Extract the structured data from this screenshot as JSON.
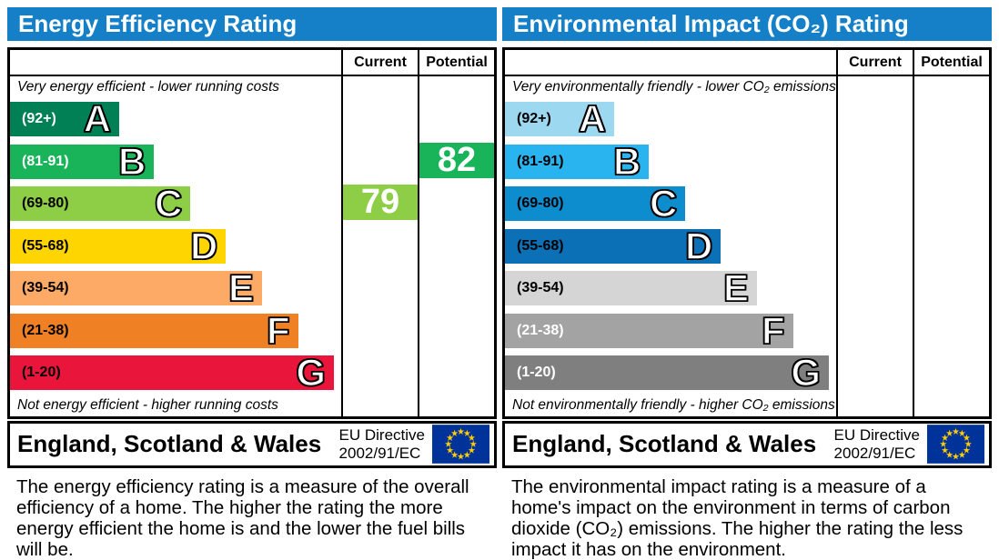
{
  "colors": {
    "title_bar": "#1580c8",
    "flag_blue": "#003399",
    "flag_star": "#ffcc00"
  },
  "panels": [
    {
      "title": "Energy Efficiency Rating",
      "columns": {
        "current": "Current",
        "potential": "Potential"
      },
      "top_caption": "Very energy efficient - lower running costs",
      "bottom_caption": "Not energy efficient - higher running costs",
      "bands": [
        {
          "range": "(92+)",
          "letter": "A",
          "color": "#008054",
          "label_color": "#ffffff",
          "width_pct": 33
        },
        {
          "range": "(81-91)",
          "letter": "B",
          "color": "#19b459",
          "label_color": "#ffffff",
          "width_pct": 43.5
        },
        {
          "range": "(69-80)",
          "letter": "C",
          "color": "#8dce46",
          "label_color": "#000000",
          "width_pct": 54.5
        },
        {
          "range": "(55-68)",
          "letter": "D",
          "color": "#ffd500",
          "label_color": "#000000",
          "width_pct": 65.2
        },
        {
          "range": "(39-54)",
          "letter": "E",
          "color": "#fcaa65",
          "label_color": "#000000",
          "width_pct": 76.1
        },
        {
          "range": "(21-38)",
          "letter": "F",
          "color": "#ef8023",
          "label_color": "#000000",
          "width_pct": 87
        },
        {
          "range": "(1-20)",
          "letter": "G",
          "color": "#e9153b",
          "label_color": "#000000",
          "width_pct": 97.8
        }
      ],
      "current": {
        "value": "79",
        "band": "C"
      },
      "potential": {
        "value": "82",
        "band": "B"
      },
      "footer": {
        "region": "England, Scotland & Wales",
        "directive_line1": "EU Directive",
        "directive_line2": "2002/91/EC"
      },
      "description": "The energy efficiency rating is a measure of the overall efficiency of a home. The higher the rating the more energy efficient the home is and the lower the fuel bills will be."
    },
    {
      "title": "Environmental Impact (CO₂) Rating",
      "columns": {
        "current": "Current",
        "potential": "Potential"
      },
      "top_caption": "Very environmentally friendly - lower CO₂ emissions",
      "bottom_caption": "Not environmentally friendly - higher CO₂ emissions",
      "bands": [
        {
          "range": "(92+)",
          "letter": "A",
          "color": "#9cd9f0",
          "label_color": "#000000",
          "width_pct": 33
        },
        {
          "range": "(81-91)",
          "letter": "B",
          "color": "#2ab4ef",
          "label_color": "#000000",
          "width_pct": 43.5
        },
        {
          "range": "(69-80)",
          "letter": "C",
          "color": "#0d8dcd",
          "label_color": "#000000",
          "width_pct": 54.5
        },
        {
          "range": "(55-68)",
          "letter": "D",
          "color": "#0b70b5",
          "label_color": "#000000",
          "width_pct": 65.2
        },
        {
          "range": "(39-54)",
          "letter": "E",
          "color": "#d5d5d5",
          "label_color": "#000000",
          "width_pct": 76.1
        },
        {
          "range": "(21-38)",
          "letter": "F",
          "color": "#a3a3a3",
          "label_color": "#ffffff",
          "width_pct": 87
        },
        {
          "range": "(1-20)",
          "letter": "G",
          "color": "#7f7f7f",
          "label_color": "#ffffff",
          "width_pct": 97.8
        }
      ],
      "current": null,
      "potential": null,
      "footer": {
        "region": "England, Scotland & Wales",
        "directive_line1": "EU Directive",
        "directive_line2": "2002/91/EC"
      },
      "description": "The environmental impact rating is a measure of a home's impact on the environment in terms of carbon dioxide (CO₂) emissions. The higher the rating the less impact it has on the environment."
    }
  ],
  "chart_data": [
    {
      "type": "bar",
      "title": "Energy Efficiency Rating",
      "categories": [
        "A (92+)",
        "B (81-91)",
        "C (69-80)",
        "D (55-68)",
        "E (39-54)",
        "F (21-38)",
        "G (1-20)"
      ],
      "values": [
        33,
        43.5,
        54.5,
        65.2,
        76.1,
        87,
        97.8
      ],
      "series": [
        {
          "name": "Current",
          "value": 79,
          "band": "C"
        },
        {
          "name": "Potential",
          "value": 82,
          "band": "B"
        }
      ],
      "xlabel": "",
      "ylabel": "",
      "annotations": [
        "Very energy efficient - lower running costs",
        "Not energy efficient - higher running costs",
        "England, Scotland & Wales",
        "EU Directive 2002/91/EC"
      ]
    },
    {
      "type": "bar",
      "title": "Environmental Impact (CO₂) Rating",
      "categories": [
        "A (92+)",
        "B (81-91)",
        "C (69-80)",
        "D (55-68)",
        "E (39-54)",
        "F (21-38)",
        "G (1-20)"
      ],
      "values": [
        33,
        43.5,
        54.5,
        65.2,
        76.1,
        87,
        97.8
      ],
      "series": [
        {
          "name": "Current",
          "value": null
        },
        {
          "name": "Potential",
          "value": null
        }
      ],
      "xlabel": "",
      "ylabel": "",
      "annotations": [
        "Very environmentally friendly - lower CO₂ emissions",
        "Not environmentally friendly - higher CO₂ emissions",
        "England, Scotland & Wales",
        "EU Directive 2002/91/EC"
      ]
    }
  ]
}
